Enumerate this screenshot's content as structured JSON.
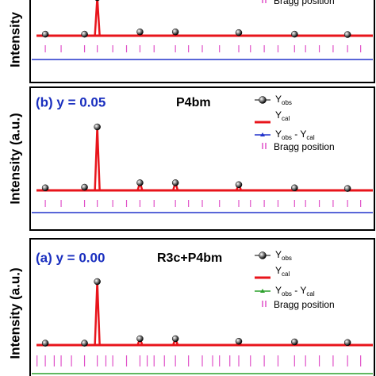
{
  "chart_data": [
    {
      "type": "line",
      "y_label": "Intensity",
      "xlim": [
        0,
        100
      ],
      "ylim": [
        0,
        100
      ],
      "x": [
        4.4,
        15.8,
        19.5,
        31.9,
        42.2,
        60.6,
        76.8,
        92.2
      ],
      "series": [
        {
          "color": "#000000",
          "values": [
            4,
            4,
            100,
            10,
            10,
            8,
            4,
            3
          ]
        },
        {
          "color": "#e8141b",
          "values": [
            4,
            4,
            100,
            10,
            10,
            8,
            4,
            3
          ]
        },
        {
          "color": "#2233cc"
        }
      ],
      "bragg": {
        "name": "Bragg position",
        "color": "#e050c8",
        "positions": [
          4.4,
          9,
          15.8,
          19.5,
          24,
          28,
          31.9,
          36,
          42.2,
          46,
          50,
          55,
          60.6,
          64,
          68,
          72,
          76.8,
          80,
          84,
          88,
          92.2,
          96
        ]
      }
    },
    {
      "type": "line",
      "title": "(b) y = 0.05",
      "phase": "P4bm",
      "y_label": "Intensity (a.u.)",
      "xlim": [
        0,
        100
      ],
      "ylim": [
        0,
        100
      ],
      "x": [
        4.4,
        15.8,
        19.5,
        31.9,
        42.2,
        60.6,
        76.8,
        92.2
      ],
      "series": [
        {
          "name_parts": [
            "Y",
            "obs"
          ],
          "color": "#000000",
          "values": [
            4,
            5,
            100,
            12,
            12,
            9,
            4,
            3
          ]
        },
        {
          "name_parts": [
            "Y",
            "cal"
          ],
          "color": "#e8141b",
          "values": [
            4,
            5,
            100,
            12,
            12,
            9,
            4,
            3
          ]
        },
        {
          "name_parts": [
            "Y",
            "obs",
            " - Y",
            "cal"
          ],
          "color": "#2233cc"
        }
      ],
      "bragg": {
        "name": "Bragg position",
        "color": "#e050c8",
        "positions": [
          4.4,
          9,
          15.8,
          19.5,
          24,
          28,
          31.9,
          36,
          42.2,
          46,
          50,
          55,
          60.6,
          64,
          68,
          72,
          76.8,
          80,
          84,
          88,
          92.2,
          96
        ]
      }
    },
    {
      "type": "line",
      "title": "(a) y = 0.00",
      "phase": "R3c+P4bm",
      "y_label": "Intensity (a.u.)",
      "xlim": [
        0,
        100
      ],
      "ylim": [
        0,
        100
      ],
      "x": [
        4.4,
        15.8,
        19.5,
        31.9,
        42.2,
        60.6,
        76.8,
        92.2
      ],
      "series": [
        {
          "name_parts": [
            "Y",
            "obs"
          ],
          "color": "#000000",
          "values": [
            3,
            3,
            100,
            10,
            10,
            6,
            5,
            4
          ]
        },
        {
          "name_parts": [
            "Y",
            "cal"
          ],
          "color": "#e8141b",
          "values": [
            3,
            3,
            100,
            10,
            10,
            6,
            5,
            4
          ]
        },
        {
          "name_parts": [
            "Y",
            "obs",
            " - Y",
            "cal"
          ],
          "color": "#2ca02c"
        }
      ],
      "bragg": {
        "name": "Bragg position",
        "color": "#e050c8",
        "positions": [
          2,
          4.4,
          7,
          9,
          12,
          15.8,
          19.5,
          22,
          24,
          28,
          31.9,
          34,
          36,
          39,
          42.2,
          46,
          50,
          53,
          55,
          58,
          60.6,
          64,
          68,
          72,
          76.8,
          80,
          84,
          88,
          92.2,
          96
        ]
      }
    }
  ]
}
